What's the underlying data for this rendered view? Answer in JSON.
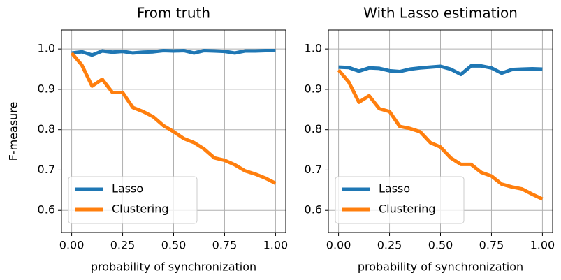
{
  "chart_data": [
    {
      "type": "line",
      "title": "From truth",
      "xlabel": "probability of synchronization",
      "ylabel": "F-measure",
      "x": [
        0,
        0.05,
        0.1,
        0.15,
        0.2,
        0.25,
        0.3,
        0.35,
        0.4,
        0.45,
        0.5,
        0.55,
        0.6,
        0.65,
        0.7,
        0.75,
        0.8,
        0.85,
        0.9,
        0.95,
        1.0
      ],
      "series": [
        {
          "name": "Lasso",
          "color": "#1f77b4",
          "values": [
            0.99,
            0.993,
            0.985,
            0.995,
            0.992,
            0.994,
            0.99,
            0.992,
            0.993,
            0.996,
            0.995,
            0.996,
            0.99,
            0.996,
            0.995,
            0.994,
            0.99,
            0.995,
            0.995,
            0.996,
            0.996
          ]
        },
        {
          "name": "Clustering",
          "color": "#ff7f0e",
          "values": [
            0.99,
            0.96,
            0.908,
            0.925,
            0.892,
            0.892,
            0.855,
            0.845,
            0.832,
            0.81,
            0.795,
            0.778,
            0.768,
            0.752,
            0.73,
            0.724,
            0.713,
            0.698,
            0.69,
            0.68,
            0.667
          ]
        }
      ],
      "xlim": [
        -0.05,
        1.05
      ],
      "ylim": [
        0.545,
        1.047
      ],
      "xticks": [
        {
          "value": 0,
          "label": "0.00"
        },
        {
          "value": 0.25,
          "label": "0.25"
        },
        {
          "value": 0.5,
          "label": "0.50"
        },
        {
          "value": 0.75,
          "label": "0.75"
        },
        {
          "value": 1,
          "label": "1.00"
        }
      ],
      "yticks": [
        0.6,
        0.7,
        0.8,
        0.9,
        {
          "value": 1,
          "label": "1.0"
        }
      ],
      "grid": true,
      "legend": "lower left"
    },
    {
      "type": "line",
      "title": "With Lasso estimation",
      "xlabel": "probability of synchronization",
      "x": [
        0,
        0.05,
        0.1,
        0.15,
        0.2,
        0.25,
        0.3,
        0.35,
        0.4,
        0.45,
        0.5,
        0.55,
        0.6,
        0.65,
        0.7,
        0.75,
        0.8,
        0.85,
        0.9,
        0.95,
        1.0
      ],
      "series": [
        {
          "name": "Lasso",
          "color": "#1f77b4",
          "values": [
            0.955,
            0.954,
            0.945,
            0.953,
            0.952,
            0.946,
            0.944,
            0.95,
            0.953,
            0.955,
            0.957,
            0.95,
            0.937,
            0.958,
            0.958,
            0.953,
            0.94,
            0.949,
            0.95,
            0.951,
            0.95
          ]
        },
        {
          "name": "Clustering",
          "color": "#ff7f0e",
          "values": [
            0.948,
            0.918,
            0.868,
            0.884,
            0.852,
            0.845,
            0.808,
            0.803,
            0.795,
            0.768,
            0.757,
            0.73,
            0.714,
            0.714,
            0.694,
            0.685,
            0.665,
            0.658,
            0.653,
            0.64,
            0.628
          ]
        }
      ],
      "xlim": [
        -0.05,
        1.05
      ],
      "ylim": [
        0.545,
        1.047
      ],
      "xticks": [
        {
          "value": 0,
          "label": "0.00"
        },
        {
          "value": 0.25,
          "label": "0.25"
        },
        {
          "value": 0.5,
          "label": "0.50"
        },
        {
          "value": 0.75,
          "label": "0.75"
        },
        {
          "value": 1,
          "label": "1.00"
        }
      ],
      "yticks": [
        0.6,
        0.7,
        0.8,
        0.9,
        {
          "value": 1,
          "label": "1.0"
        }
      ],
      "grid": true,
      "legend": "lower left"
    }
  ]
}
